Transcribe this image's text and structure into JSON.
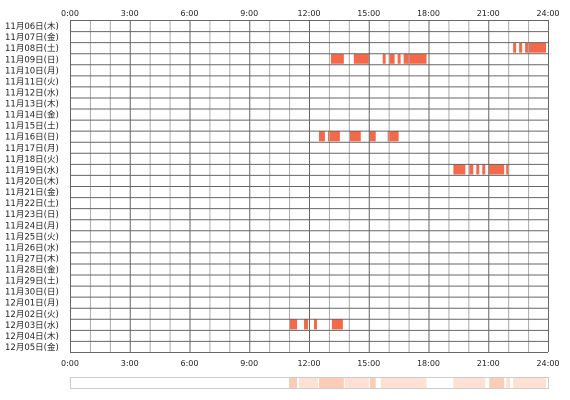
{
  "chart_data": {
    "type": "heatmap",
    "title": "",
    "xlabel": "",
    "ylabel": "",
    "x_ticks": [
      "0:00",
      "3:00",
      "6:00",
      "9:00",
      "12:00",
      "15:00",
      "18:00",
      "21:00",
      "24:00"
    ],
    "xlim": [
      0,
      24
    ],
    "grid": true,
    "colors": {
      "activity": "#f4694a",
      "summary_light": "#fde1d3",
      "summary_mid": "#fbcdb6",
      "grid_major": "#666666",
      "grid_minor": "#aaaaaa"
    },
    "days": [
      "11月06日(木)",
      "11月07日(金)",
      "11月08日(土)",
      "11月09日(日)",
      "11月10日(月)",
      "11月11日(火)",
      "11月12日(水)",
      "11月13日(木)",
      "11月14日(金)",
      "11月15日(土)",
      "11月16日(日)",
      "11月17日(月)",
      "11月18日(火)",
      "11月19日(水)",
      "11月20日(木)",
      "11月21日(金)",
      "11月22日(土)",
      "11月23日(日)",
      "11月24日(月)",
      "11月25日(火)",
      "11月26日(水)",
      "11月27日(木)",
      "11月28日(金)",
      "11月29日(土)",
      "11月30日(日)",
      "12月01日(月)",
      "12月02日(火)",
      "12月03日(水)",
      "12月04日(木)",
      "12月05日(金)"
    ],
    "activity": [
      {
        "day": 2,
        "start": 22.25,
        "end": 22.4
      },
      {
        "day": 2,
        "start": 22.55,
        "end": 22.7
      },
      {
        "day": 2,
        "start": 22.85,
        "end": 23.9
      },
      {
        "day": 3,
        "start": 13.1,
        "end": 13.75
      },
      {
        "day": 3,
        "start": 14.25,
        "end": 15.0
      },
      {
        "day": 3,
        "start": 15.7,
        "end": 15.85
      },
      {
        "day": 3,
        "start": 16.0,
        "end": 16.3
      },
      {
        "day": 3,
        "start": 16.45,
        "end": 16.6
      },
      {
        "day": 3,
        "start": 16.75,
        "end": 17.9
      },
      {
        "day": 10,
        "start": 12.5,
        "end": 12.8
      },
      {
        "day": 10,
        "start": 12.95,
        "end": 13.55
      },
      {
        "day": 10,
        "start": 14.05,
        "end": 14.6
      },
      {
        "day": 10,
        "start": 15.05,
        "end": 15.35
      },
      {
        "day": 10,
        "start": 15.95,
        "end": 16.5
      },
      {
        "day": 13,
        "start": 19.25,
        "end": 19.85
      },
      {
        "day": 13,
        "start": 20.05,
        "end": 20.25
      },
      {
        "day": 13,
        "start": 20.4,
        "end": 20.55
      },
      {
        "day": 13,
        "start": 20.7,
        "end": 20.85
      },
      {
        "day": 13,
        "start": 21.05,
        "end": 21.8
      },
      {
        "day": 13,
        "start": 21.9,
        "end": 22.05
      },
      {
        "day": 27,
        "start": 11.0,
        "end": 11.4
      },
      {
        "day": 27,
        "start": 11.75,
        "end": 11.95
      },
      {
        "day": 27,
        "start": 12.25,
        "end": 12.4
      },
      {
        "day": 27,
        "start": 13.15,
        "end": 13.7
      }
    ],
    "summary": [
      {
        "start": 11.0,
        "end": 11.4,
        "level": "mid"
      },
      {
        "start": 11.5,
        "end": 12.45,
        "level": "light"
      },
      {
        "start": 12.5,
        "end": 13.75,
        "level": "mid"
      },
      {
        "start": 13.8,
        "end": 15.0,
        "level": "light"
      },
      {
        "start": 15.05,
        "end": 15.35,
        "level": "mid"
      },
      {
        "start": 15.6,
        "end": 17.9,
        "level": "light"
      },
      {
        "start": 19.25,
        "end": 20.85,
        "level": "light"
      },
      {
        "start": 21.05,
        "end": 21.8,
        "level": "mid"
      },
      {
        "start": 21.9,
        "end": 22.1,
        "level": "light"
      },
      {
        "start": 22.25,
        "end": 23.9,
        "level": "light"
      }
    ]
  }
}
